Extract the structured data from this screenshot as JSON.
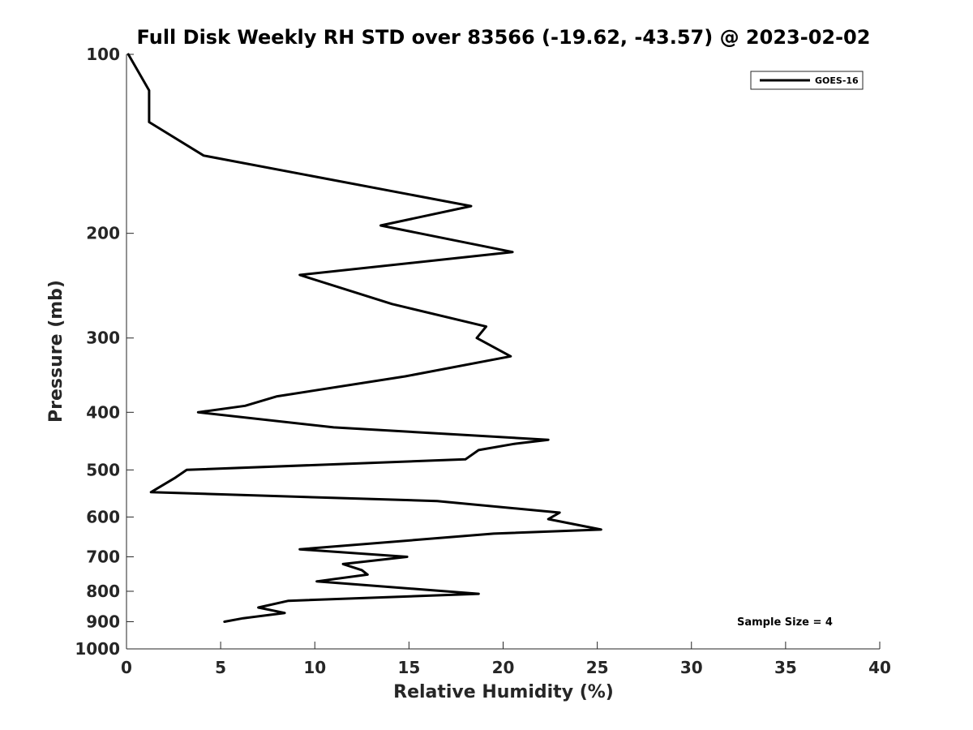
{
  "chart_data": {
    "type": "line",
    "title": "Full Disk Weekly RH STD over 83566 (-19.62, -43.57) @ 2023-02-02",
    "xlabel": "Relative Humidity (%)",
    "ylabel": "Pressure (mb)",
    "xlim": [
      0,
      40
    ],
    "ylim": [
      100,
      1000
    ],
    "y_scale": "log",
    "y_reversed": true,
    "grid": false,
    "legend_position": "top-right",
    "x_ticks": [
      0,
      5,
      10,
      15,
      20,
      25,
      30,
      35,
      40
    ],
    "x_tick_labels": [
      "0",
      "5",
      "10",
      "15",
      "20",
      "25",
      "30",
      "35",
      "40"
    ],
    "y_ticks": [
      100,
      200,
      300,
      400,
      500,
      600,
      700,
      800,
      900,
      1000
    ],
    "y_tick_labels": [
      "100",
      "200",
      "300",
      "400",
      "500",
      "600",
      "700",
      "800",
      "900",
      "1000"
    ],
    "series": [
      {
        "name": "GOES-16",
        "color": "#000000",
        "x": [
          0.1,
          1.2,
          1.2,
          4.1,
          18.3,
          13.5,
          20.5,
          9.2,
          14.1,
          19.1,
          18.6,
          20.4,
          14.8,
          8.0,
          6.3,
          3.8,
          11.0,
          22.4,
          20.6,
          18.7,
          18.0,
          3.2,
          2.6,
          1.3,
          16.5,
          23.0,
          22.4,
          25.2,
          19.5,
          9.2,
          14.9,
          11.5,
          12.5,
          12.8,
          10.1,
          18.7,
          8.6,
          7.0,
          8.4,
          6.2,
          5.2
        ],
        "y": [
          100,
          115,
          130,
          148,
          180,
          194,
          215,
          235,
          263,
          287,
          300,
          322,
          348,
          376,
          390,
          400,
          424,
          445,
          452,
          463,
          480,
          500,
          515,
          545,
          564,
          590,
          605,
          630,
          640,
          680,
          700,
          720,
          737,
          750,
          770,
          808,
          830,
          852,
          870,
          888,
          900
        ]
      }
    ],
    "annotations": [
      "Sample Size = 4"
    ]
  }
}
